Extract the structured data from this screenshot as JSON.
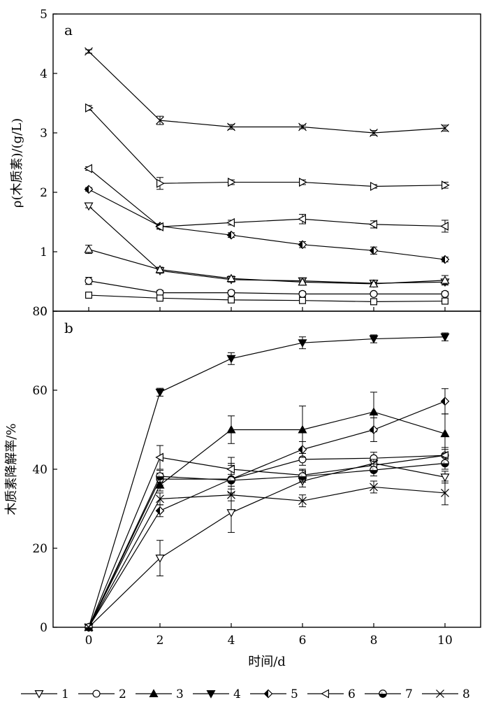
{
  "chart_data": [
    {
      "type": "line",
      "panel_label": "a",
      "xlabel": "",
      "ylabel": "ρ(木质素)/(g/L)",
      "xlim": [
        -1,
        11
      ],
      "ylim": [
        0,
        5
      ],
      "x_ticks": [
        0,
        2,
        4,
        6,
        8,
        10
      ],
      "y_ticks": [
        0,
        1,
        2,
        3,
        4,
        5
      ],
      "x": [
        0,
        2,
        4,
        6,
        8,
        10
      ],
      "series": [
        {
          "name": "1",
          "marker": "triangle-down-open",
          "values": [
            1.77,
            0.68,
            0.53,
            0.51,
            0.47,
            0.49
          ],
          "errors": [
            0.03,
            0.04,
            0.04,
            0.04,
            0.03,
            0.04
          ]
        },
        {
          "name": "2",
          "marker": "circle-open",
          "values": [
            0.51,
            0.31,
            0.31,
            0.29,
            0.29,
            0.29
          ],
          "errors": [
            0.06,
            0.04,
            0.04,
            0.04,
            0.03,
            0.04
          ]
        },
        {
          "name": "3",
          "marker": "triangle-up-open",
          "values": [
            1.04,
            0.7,
            0.55,
            0.49,
            0.46,
            0.52
          ],
          "errors": [
            0.07,
            0.04,
            0.04,
            0.05,
            0.03,
            0.08
          ]
        },
        {
          "name": "4",
          "marker": "square-open",
          "values": [
            0.27,
            0.22,
            0.19,
            0.18,
            0.16,
            0.17
          ],
          "errors": [
            0.03,
            0.03,
            0.04,
            0.03,
            0.03,
            0.03
          ]
        },
        {
          "name": "5",
          "marker": "diamond-half",
          "values": [
            2.05,
            1.43,
            1.28,
            1.12,
            1.02,
            0.87
          ],
          "errors": [
            0.03,
            0.04,
            0.04,
            0.05,
            0.06,
            0.04
          ]
        },
        {
          "name": "6",
          "marker": "triangle-left-open",
          "values": [
            2.4,
            1.42,
            1.49,
            1.55,
            1.46,
            1.43
          ],
          "errors": [
            0.03,
            0.04,
            0.04,
            0.08,
            0.06,
            0.1
          ]
        },
        {
          "name": "7",
          "marker": "triangle-right-open",
          "values": [
            3.42,
            2.15,
            2.17,
            2.17,
            2.1,
            2.12
          ],
          "errors": [
            0.04,
            0.1,
            0.04,
            0.04,
            0.03,
            0.05
          ]
        },
        {
          "name": "8",
          "marker": "x",
          "values": [
            4.37,
            3.21,
            3.1,
            3.1,
            3.0,
            3.08
          ],
          "errors": [
            0.03,
            0.07,
            0.04,
            0.03,
            0.04,
            0.05
          ]
        }
      ],
      "grid": false
    },
    {
      "type": "line",
      "panel_label": "b",
      "xlabel": "时间/d",
      "ylabel": "木质素降解率/%",
      "xlim": [
        -1,
        11
      ],
      "ylim": [
        0,
        80
      ],
      "x_ticks": [
        0,
        2,
        4,
        6,
        8,
        10
      ],
      "y_ticks": [
        0,
        20,
        40,
        60,
        80
      ],
      "x": [
        0,
        2,
        4,
        6,
        8,
        10
      ],
      "series": [
        {
          "name": "1",
          "marker": "triangle-down-open",
          "values": [
            0,
            17.5,
            29,
            37,
            41.5,
            38
          ],
          "errors": [
            0,
            4.5,
            5,
            1.5,
            1.5,
            1.5
          ]
        },
        {
          "name": "2",
          "marker": "circle-open",
          "values": [
            0,
            37.5,
            37.5,
            42.5,
            42.8,
            43.5
          ],
          "errors": [
            0,
            1.5,
            3.5,
            1.5,
            1.5,
            1.5
          ]
        },
        {
          "name": "3",
          "marker": "triangle-up-filled",
          "values": [
            0,
            36,
            50,
            50,
            54.5,
            49
          ],
          "errors": [
            0,
            1.5,
            3.5,
            6,
            5,
            5
          ]
        },
        {
          "name": "4",
          "marker": "triangle-down-filled",
          "values": [
            0,
            59.5,
            68,
            72,
            73,
            73.5
          ],
          "errors": [
            0,
            1,
            1.5,
            1.5,
            1,
            1
          ]
        },
        {
          "name": "5",
          "marker": "diamond-half",
          "values": [
            0,
            29.5,
            37.5,
            45,
            50,
            57.2
          ],
          "errors": [
            0,
            1.5,
            4,
            2,
            3,
            3.2
          ]
        },
        {
          "name": "6",
          "marker": "triangle-left-open",
          "values": [
            0,
            43,
            40,
            38.5,
            41,
            43.5
          ],
          "errors": [
            0,
            3,
            3,
            1.5,
            1.5,
            2
          ]
        },
        {
          "name": "7",
          "marker": "circle-half",
          "values": [
            0,
            38.2,
            37.2,
            38.2,
            39.8,
            41.5
          ],
          "errors": [
            0,
            1.5,
            1.5,
            1.5,
            1.5,
            1.5
          ]
        },
        {
          "name": "8",
          "marker": "x",
          "values": [
            0,
            32.5,
            33.5,
            32,
            35.5,
            34
          ],
          "errors": [
            0,
            1.5,
            1.5,
            1.5,
            1.5,
            3
          ]
        }
      ],
      "grid": false
    }
  ],
  "legend": {
    "placement": "bottom",
    "entries": [
      "1",
      "2",
      "3",
      "4",
      "5",
      "6",
      "7",
      "8"
    ]
  }
}
